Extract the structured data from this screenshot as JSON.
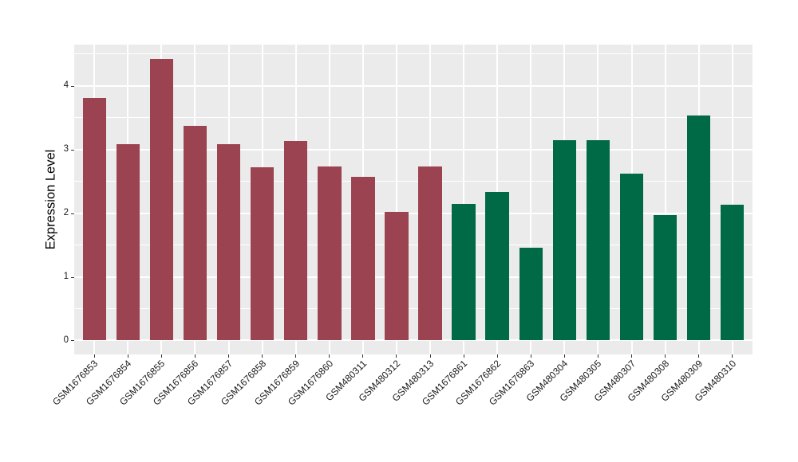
{
  "chart_data": {
    "type": "bar",
    "title": "",
    "xlabel": "",
    "ylabel": "Expression Level",
    "categories": [
      "GSM1676853",
      "GSM1676854",
      "GSM1676855",
      "GSM1676856",
      "GSM1676857",
      "GSM1676858",
      "GSM1676859",
      "GSM1676860",
      "GSM480311",
      "GSM480312",
      "GSM480313",
      "GSM1676861",
      "GSM1676862",
      "GSM1676863",
      "GSM480304",
      "GSM480305",
      "GSM480307",
      "GSM480308",
      "GSM480309",
      "GSM480310"
    ],
    "values": [
      3.81,
      3.09,
      4.43,
      3.37,
      3.09,
      2.72,
      3.13,
      2.74,
      2.57,
      2.02,
      2.74,
      2.15,
      2.33,
      1.46,
      3.15,
      3.15,
      2.62,
      1.97,
      3.53,
      2.13
    ],
    "bar_colors": [
      "#9C4351",
      "#9C4351",
      "#9C4351",
      "#9C4351",
      "#9C4351",
      "#9C4351",
      "#9C4351",
      "#9C4351",
      "#9C4351",
      "#9C4351",
      "#9C4351",
      "#006945",
      "#006945",
      "#006945",
      "#006945",
      "#006945",
      "#006945",
      "#006945",
      "#006945",
      "#006945"
    ],
    "groups": [
      {
        "color": "#9C4351",
        "count": 11
      },
      {
        "color": "#006945",
        "count": 9
      }
    ],
    "y_ticks": [
      0,
      1,
      2,
      3,
      4
    ],
    "y_minor_ticks": [
      0.5,
      1.5,
      2.5,
      3.5,
      4.5
    ],
    "ylim": [
      -0.22,
      4.65
    ],
    "grid": true,
    "legend_position": "none",
    "colors": {
      "background": "#FFFFFF",
      "panel_background": "#EBEBEB",
      "grid": "#FFFFFF",
      "tick_mark": "#333333",
      "axis_text": "#1A1A1A",
      "axis_title": "#000000"
    }
  }
}
